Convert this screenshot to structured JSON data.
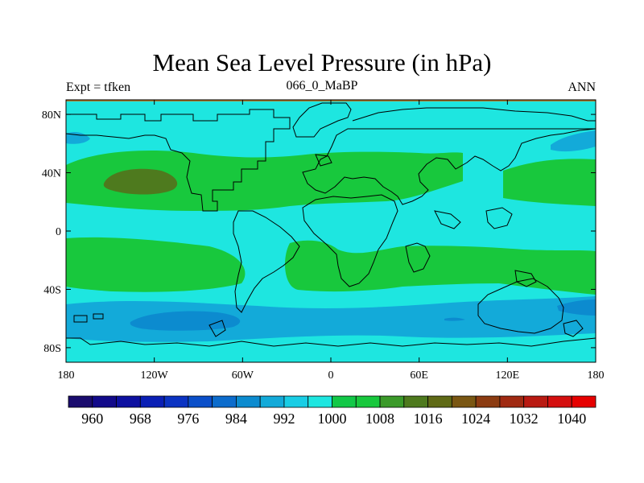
{
  "chart_data": {
    "type": "heatmap",
    "title": "Mean Sea Level Pressure (in hPa)",
    "left_string": "Expt = tfken",
    "center_string": "066_0_MaBP",
    "right_string": "ANN",
    "x_ticks": [
      "180",
      "120W",
      "60W",
      "0",
      "60E",
      "120E",
      "180"
    ],
    "y_ticks": [
      "80N",
      "40N",
      "0",
      "40S",
      "80S"
    ],
    "xlim": [
      -180,
      180
    ],
    "ylim": [
      -90,
      90
    ],
    "colorbar": {
      "levels": [
        960,
        964,
        968,
        972,
        976,
        980,
        984,
        988,
        992,
        996,
        1000,
        1004,
        1008,
        1012,
        1016,
        1020,
        1024,
        1028,
        1032,
        1036,
        1040
      ],
      "labels": [
        "960",
        "968",
        "976",
        "984",
        "992",
        "1000",
        "1008",
        "1016",
        "1024",
        "1032",
        "1040"
      ],
      "colors": [
        "#1a0c6e",
        "#120a8a",
        "#0d10a0",
        "#0a1fb5",
        "#0b33c2",
        "#0b4fc9",
        "#0c6ccc",
        "#0c8bcf",
        "#13aad9",
        "#19cde5",
        "#1ee6e0",
        "#12c847",
        "#18c83d",
        "#3b9a2a",
        "#4e7a1e",
        "#5f6a16",
        "#7a5713",
        "#8c3c12",
        "#a02a12",
        "#b91a12",
        "#d40f0f",
        "#e60000"
      ]
    },
    "field_colors": {
      "p1000": "#1ee6e0",
      "p1008": "#18c83d",
      "p1016": "#4e7a1e",
      "p992": "#13aad9",
      "p984": "#0c8bcf"
    }
  }
}
